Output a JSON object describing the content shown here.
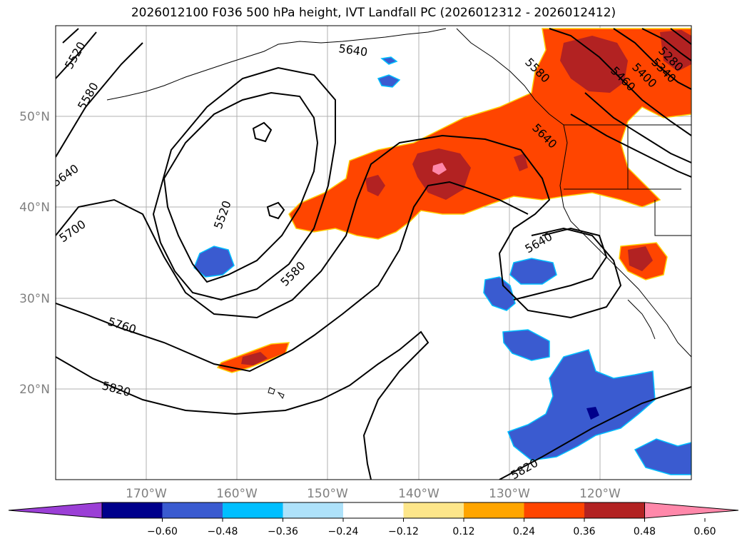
{
  "title": "2026012100 F036 500 hPa height, IVT Landfall PC (2026012312 - 2026012412)",
  "map": {
    "lon_labels": [
      "170°W",
      "160°W",
      "150°W",
      "140°W",
      "130°W",
      "120°W"
    ],
    "lat_labels": [
      "50°N",
      "40°N",
      "30°N",
      "20°N"
    ],
    "contour_labels": [
      "5280",
      "5340",
      "5400",
      "5460",
      "5520",
      "5580",
      "5640",
      "5700",
      "5760",
      "5820"
    ]
  },
  "colorbar": {
    "ticks": [
      "−0.60",
      "−0.48",
      "−0.36",
      "−0.24",
      "−0.12",
      "0.12",
      "0.24",
      "0.36",
      "0.48",
      "0.60"
    ],
    "colors": [
      "#9b3fd6",
      "#00008b",
      "#3a5bd0",
      "#00bfff",
      "#aee2fa",
      "#ffffff",
      "#fde68a",
      "#ffa500",
      "#ff4500",
      "#b22222",
      "#ff88aa"
    ]
  }
}
